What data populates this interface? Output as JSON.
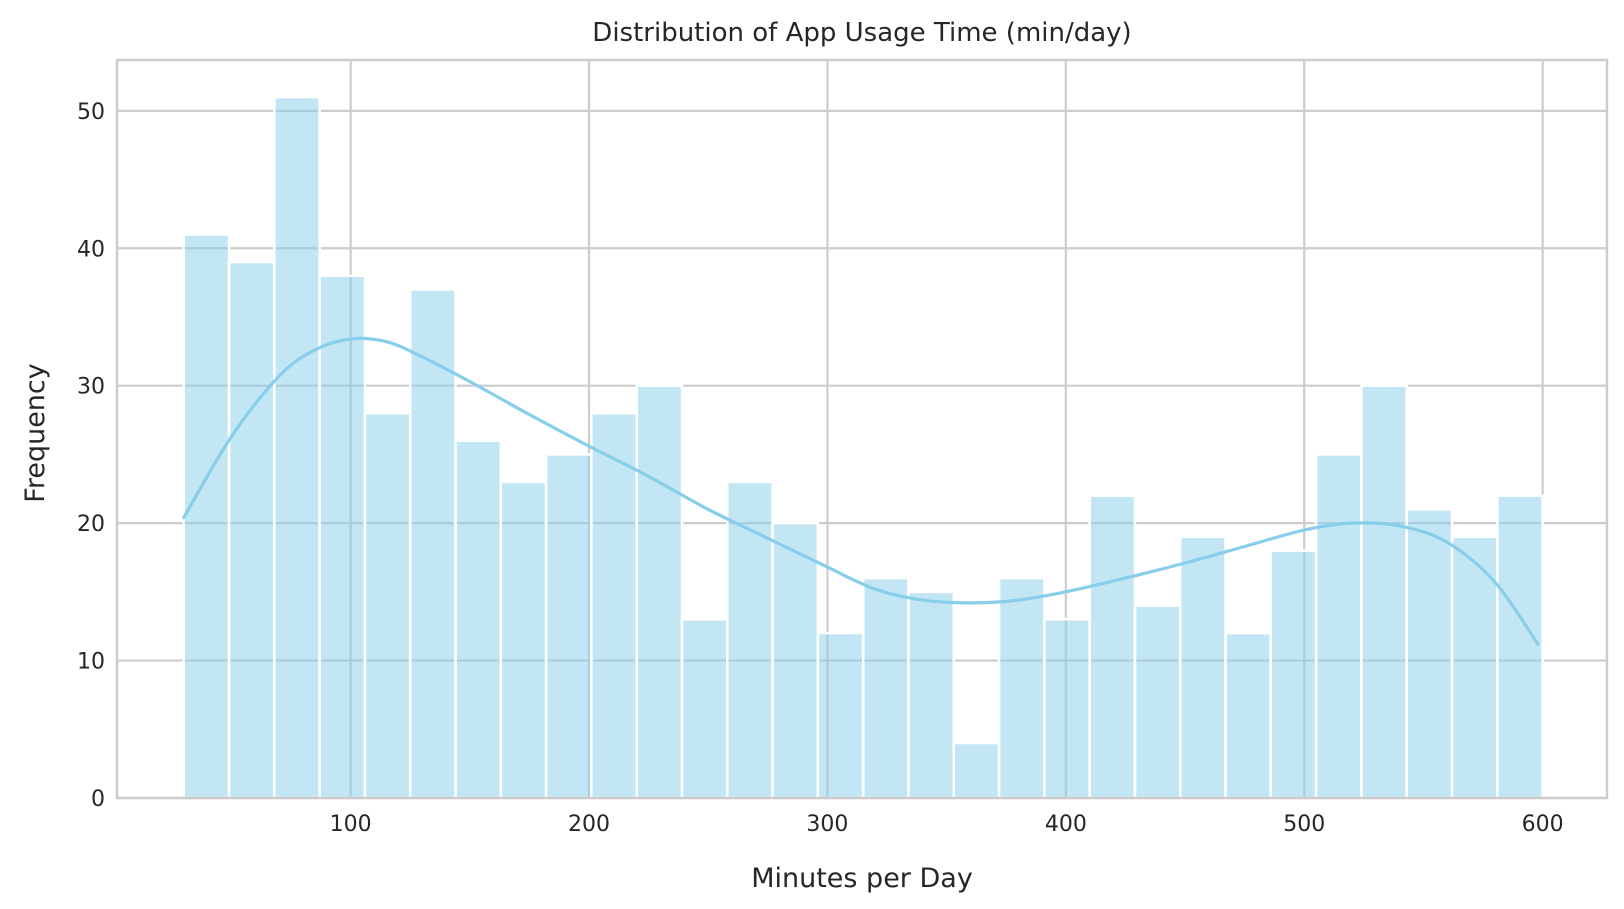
{
  "chart_data": {
    "type": "bar",
    "subtype": "histogram-with-kde",
    "title": "Distribution of App Usage Time (min/day)",
    "xlabel": "Minutes per Day",
    "ylabel": "Frequency",
    "xlim": [
      2,
      627
    ],
    "ylim": [
      0,
      53.7
    ],
    "xticks": [
      100,
      200,
      300,
      400,
      500,
      600
    ],
    "yticks": [
      0,
      10,
      20,
      30,
      40,
      50
    ],
    "grid": true,
    "legend": "none",
    "bin_start": 30,
    "bin_width": 19,
    "counts": [
      41,
      39,
      51,
      38,
      28,
      37,
      26,
      23,
      25,
      28,
      30,
      13,
      23,
      20,
      12,
      16,
      15,
      4,
      16,
      13,
      22,
      14,
      19,
      12,
      18,
      25,
      30,
      21,
      19,
      22
    ],
    "kde": {
      "x": [
        30,
        50,
        70,
        85,
        100,
        115,
        130,
        150,
        175,
        200,
        225,
        250,
        275,
        300,
        320,
        340,
        360,
        380,
        400,
        425,
        450,
        475,
        500,
        520,
        540,
        560,
        580,
        598
      ],
      "y": [
        20.4,
        26.3,
        30.7,
        32.6,
        33.4,
        33.2,
        32.1,
        30.3,
        27.9,
        25.6,
        23.4,
        21.0,
        18.9,
        16.8,
        15.2,
        14.4,
        14.2,
        14.4,
        15.0,
        16.0,
        17.1,
        18.3,
        19.5,
        20.0,
        19.8,
        18.6,
        15.7,
        11.2
      ]
    },
    "colors": {
      "bar": "#87ceeb",
      "bar_edge": "#ffffff",
      "kde": "#87ceeb",
      "grid": "#cccccc",
      "spine": "#cccccc"
    }
  }
}
